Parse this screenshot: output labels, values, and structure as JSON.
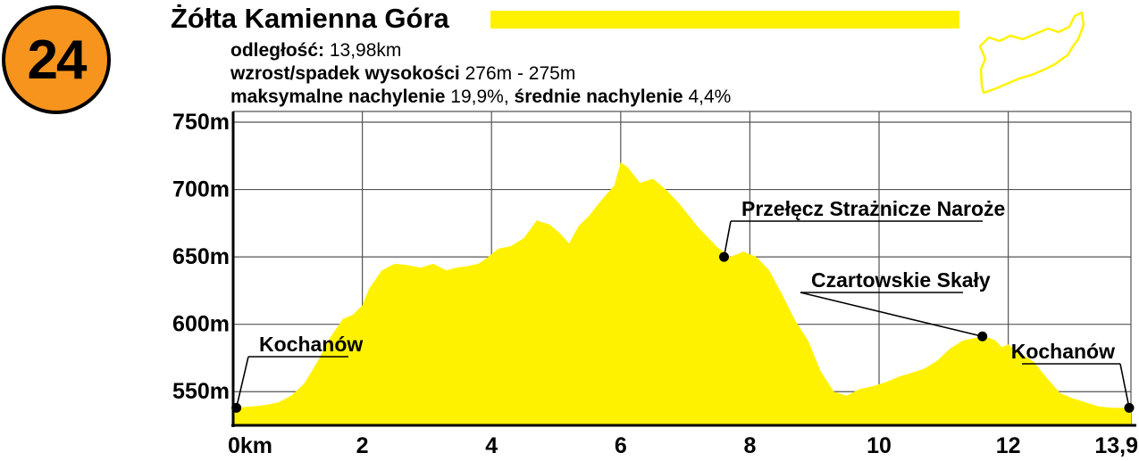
{
  "route": {
    "number": "24",
    "title": "Żółta Kamienna Góra",
    "trail_color": "#fff200",
    "badge_color": "#f7941d"
  },
  "stats": {
    "distance_label": "odległość:",
    "distance_value": " 13,98km",
    "elevation_label": "wzrost/spadek wysokości",
    "elevation_value": " 276m - 275m",
    "max_slope_label": "maksymalne nachylenie",
    "max_slope_value": " 19,9%, ",
    "avg_slope_label": "średnie nachylenie",
    "avg_slope_value": " 4,4%"
  },
  "map_icon": "route-outline-map",
  "chart_data": {
    "type": "area",
    "title": "",
    "xlabel": "",
    "ylabel": "",
    "xlim": [
      0,
      13.9
    ],
    "ylim": [
      525,
      750
    ],
    "grid": true,
    "fill_color": "#fff200",
    "x_ticks": [
      {
        "value": 0,
        "label": "0km"
      },
      {
        "value": 2,
        "label": "2"
      },
      {
        "value": 4,
        "label": "4"
      },
      {
        "value": 6,
        "label": "6"
      },
      {
        "value": 8,
        "label": "8"
      },
      {
        "value": 10,
        "label": "10"
      },
      {
        "value": 12,
        "label": "12"
      },
      {
        "value": 13.9,
        "label": "13,9"
      }
    ],
    "y_ticks": [
      {
        "value": 550,
        "label": "550m"
      },
      {
        "value": 600,
        "label": "600m"
      },
      {
        "value": 650,
        "label": "650m"
      },
      {
        "value": 700,
        "label": "700m"
      },
      {
        "value": 750,
        "label": "750m"
      }
    ],
    "profile": {
      "x": [
        0,
        0.3,
        0.5,
        0.7,
        0.9,
        1.1,
        1.3,
        1.5,
        1.7,
        1.85,
        2.0,
        2.1,
        2.3,
        2.5,
        2.7,
        2.9,
        3.1,
        3.3,
        3.45,
        3.6,
        3.8,
        3.95,
        4.1,
        4.3,
        4.5,
        4.7,
        4.9,
        5.05,
        5.2,
        5.35,
        5.5,
        5.7,
        5.9,
        6.0,
        6.1,
        6.3,
        6.5,
        6.7,
        6.9,
        7.2,
        7.5,
        7.7,
        7.9,
        8.1,
        8.3,
        8.5,
        8.7,
        8.9,
        9.1,
        9.3,
        9.5,
        9.7,
        9.9,
        10.1,
        10.3,
        10.5,
        10.7,
        10.9,
        11.1,
        11.3,
        11.5,
        11.7,
        11.8,
        11.9,
        12.0,
        12.2,
        12.4,
        12.6,
        12.8,
        13.0,
        13.2,
        13.4,
        13.6,
        13.9
      ],
      "y": [
        538,
        539,
        540,
        542,
        547,
        556,
        572,
        590,
        604,
        607,
        614,
        626,
        640,
        645,
        644,
        642,
        645,
        640,
        642,
        643,
        645,
        650,
        656,
        658,
        664,
        677,
        674,
        668,
        660,
        673,
        680,
        692,
        703,
        720,
        717,
        705,
        708,
        700,
        690,
        672,
        657,
        650,
        654,
        650,
        640,
        622,
        603,
        588,
        565,
        550,
        547,
        552,
        554,
        557,
        561,
        564,
        567,
        573,
        582,
        588,
        590,
        590,
        588,
        583,
        585,
        578,
        572,
        560,
        549,
        545,
        542,
        539,
        538,
        538
      ]
    },
    "annotations": [
      {
        "label": "Kochanów",
        "x": 0.05,
        "y": 538
      },
      {
        "label": "Przełęcz Strażnicze Naroże",
        "x": 7.6,
        "y": 650
      },
      {
        "label": "Czartowskie Skały",
        "x": 11.6,
        "y": 591
      },
      {
        "label": "Kochanów",
        "x": 13.9,
        "y": 538
      }
    ]
  }
}
